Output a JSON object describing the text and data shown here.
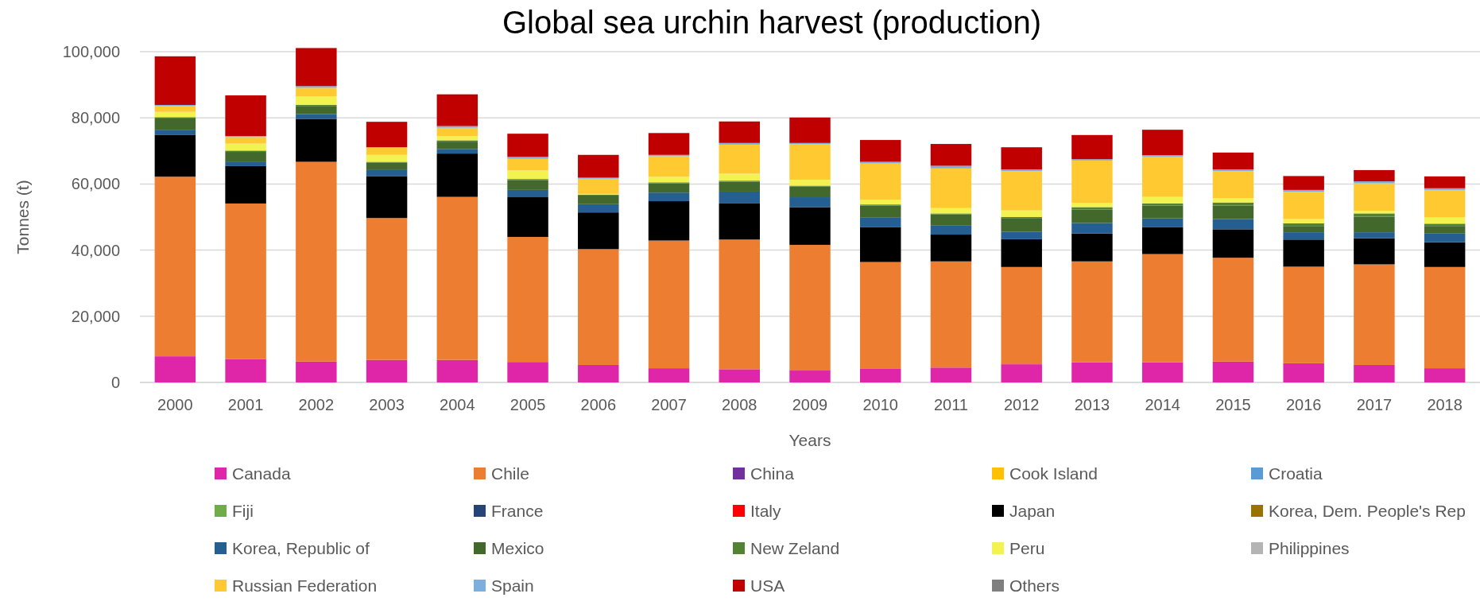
{
  "chart_data": {
    "type": "bar",
    "title": "Global sea urchin harvest (production)",
    "xlabel": "Years",
    "ylabel": "Tonnes (t)",
    "stacked": true,
    "grid": "y",
    "legend": "bottom",
    "categories": [
      "2000",
      "2001",
      "2002",
      "2003",
      "2004",
      "2005",
      "2006",
      "2007",
      "2008",
      "2009",
      "2010",
      "2011",
      "2012",
      "2013",
      "2014",
      "2015",
      "2016",
      "2017",
      "2018"
    ],
    "ylim": [
      0,
      101200
    ],
    "yticks": [
      0,
      {
        "value": 20000,
        "label": "20,000"
      },
      {
        "value": 40000,
        "label": "40,000"
      },
      {
        "value": 60000,
        "label": "60,000"
      },
      {
        "value": 80000,
        "label": "80,000"
      },
      {
        "value": 100000,
        "label": "100,000"
      }
    ],
    "series": [
      {
        "name": "Canada",
        "color": "#e026a8",
        "values": [
          7900,
          7100,
          6300,
          6800,
          6800,
          6200,
          5300,
          4300,
          4000,
          3600,
          4100,
          4500,
          5500,
          6100,
          6100,
          6300,
          5800,
          5300,
          4300
        ]
      },
      {
        "name": "Chile",
        "color": "#ed7d31",
        "values": [
          54300,
          47000,
          60400,
          42900,
          49300,
          37800,
          35000,
          38600,
          39200,
          38000,
          32300,
          32100,
          29400,
          30500,
          32700,
          31400,
          29200,
          30400,
          30600
        ]
      },
      {
        "name": "China",
        "color": "#7030a0",
        "values": [
          0,
          0,
          0,
          0,
          0,
          0,
          0,
          0,
          0,
          0,
          0,
          0,
          0,
          0,
          0,
          0,
          0,
          0,
          0
        ]
      },
      {
        "name": "Cook Island",
        "color": "#ffc000",
        "values": [
          0,
          0,
          0,
          0,
          0,
          0,
          0,
          0,
          0,
          0,
          0,
          0,
          0,
          0,
          0,
          0,
          0,
          0,
          0
        ]
      },
      {
        "name": "Croatia",
        "color": "#5b9bd5",
        "values": [
          0,
          0,
          0,
          0,
          0,
          0,
          0,
          0,
          0,
          0,
          0,
          0,
          0,
          0,
          0,
          0,
          0,
          0,
          0
        ]
      },
      {
        "name": "Fiji",
        "color": "#70ad47",
        "values": [
          0,
          0,
          0,
          0,
          0,
          0,
          0,
          0,
          0,
          0,
          0,
          0,
          0,
          0,
          0,
          0,
          0,
          0,
          0
        ]
      },
      {
        "name": "France",
        "color": "#264478",
        "values": [
          0,
          0,
          0,
          0,
          0,
          0,
          0,
          0,
          0,
          0,
          0,
          0,
          0,
          0,
          0,
          0,
          0,
          0,
          0
        ]
      },
      {
        "name": "Italy",
        "color": "#ff0000",
        "values": [
          0,
          0,
          0,
          0,
          0,
          0,
          0,
          0,
          0,
          0,
          0,
          0,
          0,
          0,
          0,
          0,
          0,
          0,
          0
        ]
      },
      {
        "name": "Japan",
        "color": "#000000",
        "values": [
          12700,
          11300,
          13000,
          12700,
          13100,
          12000,
          11100,
          11900,
          10900,
          11400,
          10500,
          8100,
          8400,
          8400,
          8100,
          8600,
          8200,
          7900,
          7500
        ]
      },
      {
        "name": "Korea, Dem. People's Rep",
        "color": "#997300",
        "values": [
          0,
          0,
          0,
          0,
          0,
          0,
          0,
          0,
          0,
          0,
          0,
          0,
          0,
          0,
          0,
          0,
          0,
          0,
          0
        ]
      },
      {
        "name": "Korea, Republic of",
        "color": "#255e91",
        "values": [
          1500,
          1400,
          1400,
          1800,
          1300,
          2200,
          2500,
          2600,
          3600,
          3000,
          2900,
          2700,
          2300,
          3200,
          2700,
          3100,
          2200,
          1800,
          2600
        ]
      },
      {
        "name": "Mexico",
        "color": "#43682b",
        "values": [
          3400,
          2900,
          2500,
          2200,
          2300,
          3000,
          2600,
          2800,
          3000,
          3200,
          3700,
          3400,
          4100,
          4100,
          3900,
          4100,
          1900,
          4700,
          2300
        ]
      },
      {
        "name": "New Zeland",
        "color": "#548235",
        "values": [
          400,
          400,
          300,
          300,
          400,
          300,
          300,
          300,
          300,
          300,
          300,
          300,
          300,
          700,
          600,
          900,
          800,
          1000,
          700
        ]
      },
      {
        "name": "Peru",
        "color": "#f2f250",
        "values": [
          1600,
          2100,
          2600,
          2100,
          1300,
          2600,
          200,
          1700,
          2100,
          1800,
          1400,
          1600,
          2000,
          1300,
          2000,
          1300,
          1400,
          800,
          1900
        ]
      },
      {
        "name": "Philippines",
        "color": "#b4b4b4",
        "values": [
          0,
          0,
          0,
          0,
          0,
          0,
          0,
          0,
          0,
          0,
          0,
          0,
          0,
          0,
          0,
          0,
          0,
          0,
          0
        ]
      },
      {
        "name": "Russian Federation",
        "color": "#ffca31",
        "values": [
          1800,
          2000,
          2600,
          2300,
          2500,
          3500,
          4600,
          6200,
          8800,
          10700,
          11000,
          12000,
          11900,
          12800,
          12200,
          8200,
          8200,
          8300,
          8300
        ]
      },
      {
        "name": "Spain",
        "color": "#7cafdd",
        "values": [
          300,
          300,
          500,
          null,
          500,
          600,
          300,
          400,
          500,
          400,
          500,
          800,
          500,
          400,
          400,
          500,
          500,
          600,
          500
        ]
      },
      {
        "name": "USA",
        "color": "#c00000",
        "values": [
          14700,
          12300,
          11500,
          7700,
          9600,
          7000,
          6900,
          6600,
          6500,
          7700,
          6600,
          6600,
          6700,
          7300,
          7700,
          5100,
          4200,
          3400,
          3600
        ]
      },
      {
        "name": "Others",
        "color": "#7f7f7f",
        "values": [
          0,
          0,
          0,
          0,
          0,
          0,
          0,
          0,
          0,
          0,
          0,
          0,
          0,
          0,
          0,
          0,
          0,
          0,
          0
        ]
      }
    ]
  }
}
